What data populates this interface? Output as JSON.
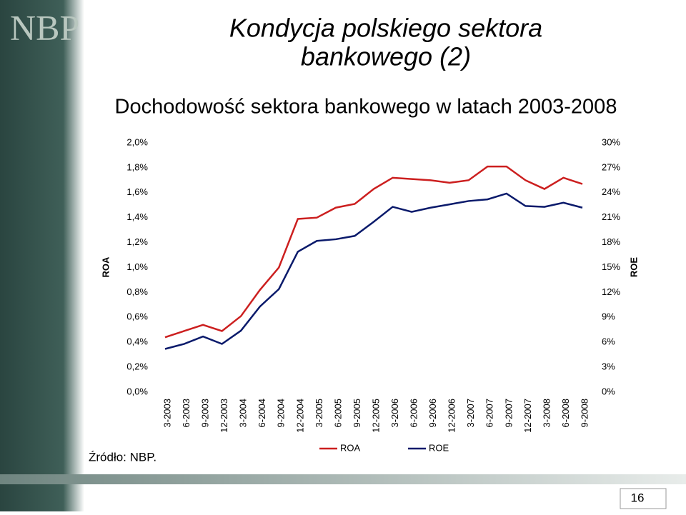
{
  "logo": "NBP",
  "title_lines": [
    "Kondycja polskiego sektora",
    "bankowego (2)"
  ],
  "source": "Źródło: NBP.",
  "page_number": "16",
  "chart_data": {
    "type": "line",
    "title": "Dochodowość sektora bankowego w latach 2003-2008",
    "ylabel": "ROA",
    "y2label": "ROE",
    "categories": [
      "3-2003",
      "6-2003",
      "9-2003",
      "12-2003",
      "3-2004",
      "6-2004",
      "9-2004",
      "12-2004",
      "3-2005",
      "6-2005",
      "9-2005",
      "12-2005",
      "3-2006",
      "6-2006",
      "9-2006",
      "12-2006",
      "3-2007",
      "6-2007",
      "9-2007",
      "12-2007",
      "3-2008",
      "6-2008",
      "9-2008"
    ],
    "series": [
      {
        "name": "ROA",
        "color": "#cc1f1f",
        "values": [
          0.44,
          0.49,
          0.54,
          0.49,
          0.61,
          0.82,
          1.0,
          1.39,
          1.4,
          1.48,
          1.51,
          1.63,
          1.72,
          1.71,
          1.7,
          1.68,
          1.7,
          1.81,
          1.81,
          1.7,
          1.63,
          1.72,
          1.67
        ]
      },
      {
        "name": "ROE",
        "color": "#0a1a6b",
        "axis": "y2",
        "values": [
          5.2,
          5.8,
          6.7,
          5.8,
          7.4,
          10.3,
          12.4,
          16.9,
          18.2,
          18.4,
          18.8,
          20.5,
          22.3,
          21.7,
          22.2,
          22.6,
          23.0,
          23.2,
          23.9,
          22.4,
          22.3,
          22.8,
          22.2
        ]
      }
    ],
    "ylim": [
      0,
      2.0
    ],
    "yticks": [
      {
        "value": 0,
        "label": "0,0%"
      },
      {
        "value": 0.2,
        "label": "0,2%"
      },
      {
        "value": 0.4,
        "label": "0,4%"
      },
      {
        "value": 0.6,
        "label": "0,6%"
      },
      {
        "value": 0.8,
        "label": "0,8%"
      },
      {
        "value": 1.0,
        "label": "1,0%"
      },
      {
        "value": 1.2,
        "label": "1,2%"
      },
      {
        "value": 1.4,
        "label": "1,4%"
      },
      {
        "value": 1.6,
        "label": "1,6%"
      },
      {
        "value": 1.8,
        "label": "1,8%"
      },
      {
        "value": 2.0,
        "label": "2,0%"
      }
    ],
    "y2lim": [
      0,
      30
    ],
    "y2ticks": [
      {
        "value": 0,
        "label": "0%"
      },
      {
        "value": 3,
        "label": "3%"
      },
      {
        "value": 6,
        "label": "6%"
      },
      {
        "value": 9,
        "label": "9%"
      },
      {
        "value": 12,
        "label": "12%"
      },
      {
        "value": 15,
        "label": "15%"
      },
      {
        "value": 18,
        "label": "18%"
      },
      {
        "value": 21,
        "label": "21%"
      },
      {
        "value": 24,
        "label": "24%"
      },
      {
        "value": 27,
        "label": "27%"
      },
      {
        "value": 30,
        "label": "30%"
      }
    ],
    "grid": false,
    "legend": "bottom"
  }
}
